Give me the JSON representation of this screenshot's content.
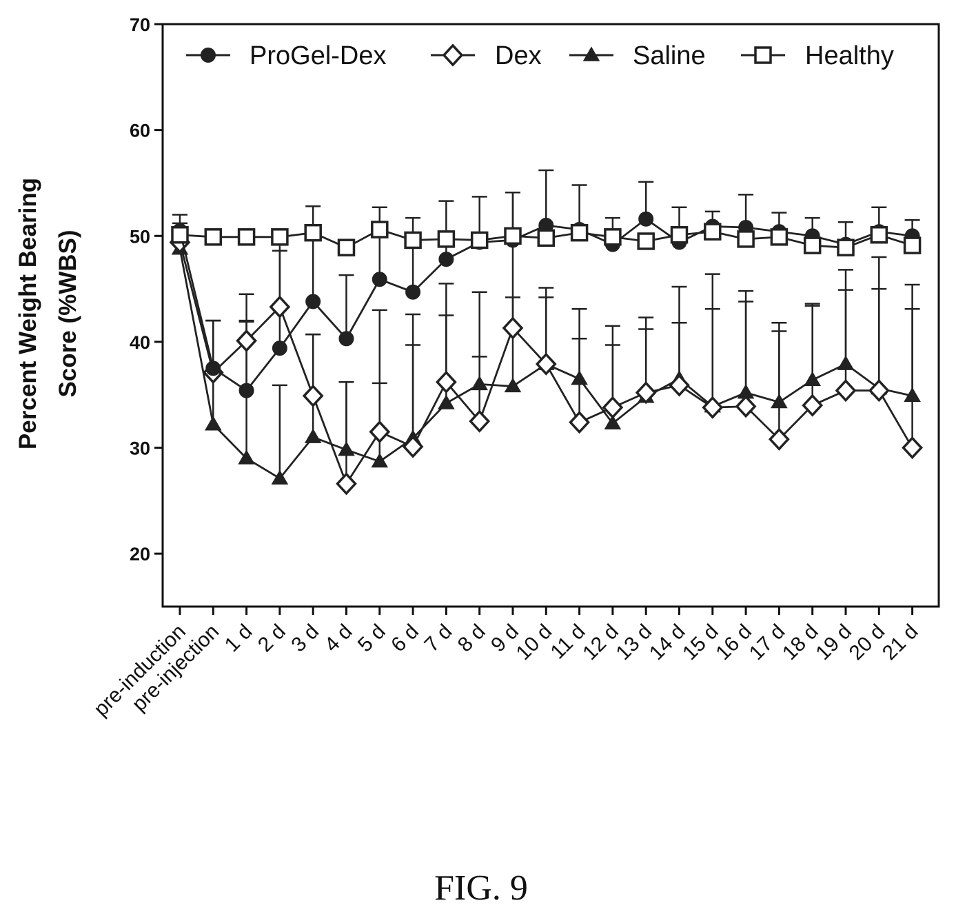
{
  "caption": "FIG. 9",
  "chart_data": {
    "type": "line",
    "title": "",
    "xlabel": "",
    "ylabel_lines": [
      "Percent Weight Bearing",
      "Score (%WBS)"
    ],
    "ylim": [
      15,
      70
    ],
    "yticks": [
      20,
      30,
      40,
      50,
      60,
      70
    ],
    "grid": false,
    "legend_position": "top",
    "categories": [
      "pre-induction",
      "pre-injection",
      "1 d",
      "2 d",
      "3 d",
      "4 d",
      "5 d",
      "6 d",
      "7 d",
      "8 d",
      "9 d",
      "10 d",
      "11 d",
      "12 d",
      "13 d",
      "14 d",
      "15 d",
      "16 d",
      "17 d",
      "18 d",
      "19 d",
      "20 d",
      "21 d"
    ],
    "series": [
      {
        "name": "ProGel-Dex",
        "marker": "filled-circle",
        "values": [
          50.5,
          37.5,
          35.4,
          39.4,
          43.8,
          40.3,
          45.9,
          44.7,
          47.8,
          49.4,
          49.6,
          51.0,
          50.6,
          49.2,
          51.6,
          49.4,
          50.9,
          50.8,
          50.4,
          50.0,
          49.2,
          50.4,
          50.0
        ],
        "error": [
          1.5,
          4.5,
          6.5,
          9.2,
          9.0,
          6.0,
          6.8,
          7.0,
          5.5,
          4.3,
          4.5,
          5.2,
          4.2,
          2.5,
          3.5,
          3.3,
          1.4,
          3.1,
          1.8,
          1.7,
          2.1,
          2.3,
          1.5
        ]
      },
      {
        "name": "Dex",
        "marker": "open-diamond",
        "values": [
          49.4,
          37.1,
          40.1,
          43.3,
          34.9,
          26.6,
          31.5,
          30.1,
          36.2,
          32.5,
          41.3,
          37.9,
          32.4,
          33.8,
          35.2,
          35.9,
          33.8,
          33.9,
          30.8,
          34.0,
          35.4,
          35.4,
          30.0
        ],
        "error": [
          1.8,
          4.9,
          4.4,
          7.0,
          5.8,
          9.6,
          11.5,
          12.5,
          9.3,
          12.2,
          12.8,
          7.2,
          10.7,
          7.7,
          7.1,
          9.3,
          12.6,
          10.9,
          11.0,
          9.6,
          11.4,
          12.6,
          15.4
        ]
      },
      {
        "name": "Saline",
        "marker": "filled-triangle",
        "values": [
          48.8,
          32.2,
          29.0,
          27.1,
          31.0,
          29.8,
          28.7,
          30.9,
          34.2,
          36.0,
          35.8,
          37.9,
          36.5,
          32.3,
          34.8,
          36.5,
          33.9,
          35.2,
          34.3,
          36.4,
          37.9,
          35.6,
          34.9
        ],
        "error": [
          1.5,
          9.8,
          13.0,
          8.8,
          9.7,
          6.4,
          7.4,
          8.8,
          8.3,
          2.6,
          8.4,
          6.3,
          3.8,
          7.4,
          6.4,
          5.3,
          9.2,
          8.6,
          6.7,
          7.0,
          7.0,
          9.4,
          8.2
        ]
      },
      {
        "name": "Healthy",
        "marker": "open-square",
        "values": [
          50.1,
          49.9,
          49.9,
          49.9,
          50.3,
          48.9,
          50.6,
          49.6,
          49.7,
          49.6,
          50.0,
          49.8,
          50.3,
          49.9,
          49.5,
          50.1,
          50.4,
          49.7,
          49.9,
          49.1,
          48.9,
          50.1,
          49.1
        ]
      }
    ]
  }
}
